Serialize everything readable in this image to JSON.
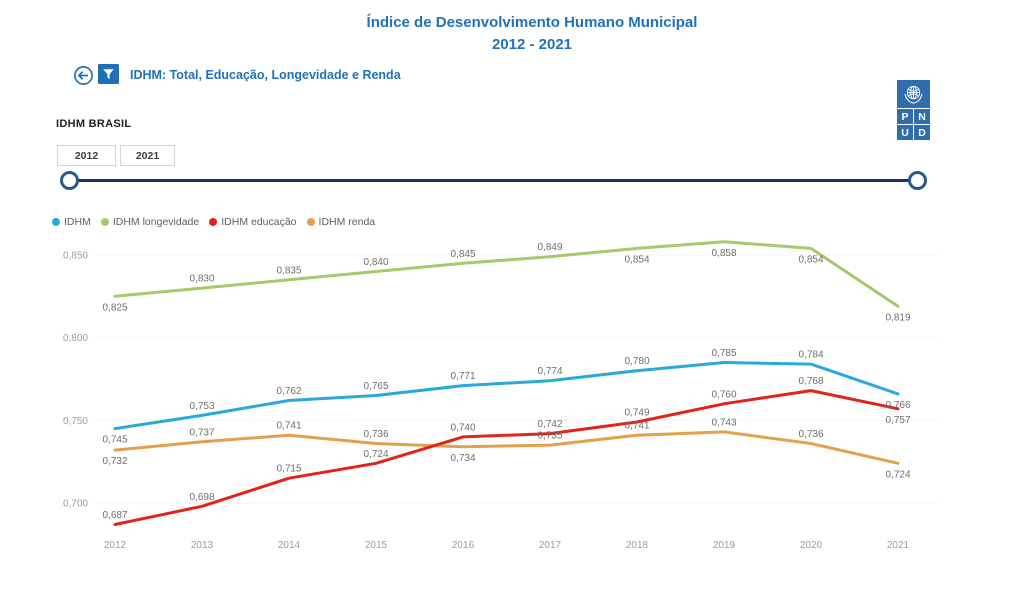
{
  "title": {
    "line1": "Índice de Desenvolvimento Humano Municipal",
    "line2": "2012 - 2021"
  },
  "toolbar": {
    "back_icon": "back-arrow-circle",
    "filter_icon": "funnel",
    "filter_label": "IDHM: Total, Educação, Longevidade e Renda"
  },
  "logo": {
    "name": "PNUD",
    "emblem": "un-globe-emblem",
    "letters": [
      "P",
      "N",
      "U",
      "D"
    ]
  },
  "panel": {
    "heading": "IDHM BRASIL",
    "year_from": "2012",
    "year_to": "2021"
  },
  "colors": {
    "accent_blue": "#1F72B8",
    "slider_navy": "#17375E",
    "logo_blue": "#2F6DAE",
    "idhm": "#29A8DC",
    "longevidade": "#A6C96A",
    "educacao": "#E2231A",
    "renda": "#E3A14E"
  },
  "legend": [
    {
      "label": "IDHM",
      "color": "#29A8DC"
    },
    {
      "label": "IDHM longevidade",
      "color": "#A6C96A"
    },
    {
      "label": "IDHM educação",
      "color": "#E2231A"
    },
    {
      "label": "IDHM renda",
      "color": "#E3A14E"
    }
  ],
  "chart_data": {
    "type": "line",
    "title": "Índice de Desenvolvimento Humano Municipal 2012 - 2021",
    "xlabel": "",
    "ylabel": "",
    "x": [
      "2012",
      "2013",
      "2014",
      "2015",
      "2016",
      "2017",
      "2018",
      "2019",
      "2020",
      "2021"
    ],
    "yticks": [
      0.85,
      0.8,
      0.75,
      0.7
    ],
    "ytick_labels": [
      "0,850",
      "0,800",
      "0,750",
      "0,700"
    ],
    "ylim": [
      0.675,
      0.865
    ],
    "grid": "horizontal-dotted",
    "legend_position": "top-left",
    "series": [
      {
        "name": "IDHM longevidade",
        "color": "#A6C96A",
        "values": [
          0.825,
          0.83,
          0.835,
          0.84,
          0.845,
          0.849,
          0.854,
          0.858,
          0.854,
          0.819
        ],
        "labels": [
          "0,825",
          "0,830",
          "0,835",
          "0,840",
          "0,845",
          "0,849",
          "0,854",
          "0,858",
          "0,854",
          "0,819"
        ],
        "label_side": [
          "below",
          "above",
          "above",
          "above",
          "above",
          "above",
          "below",
          "below",
          "below",
          "below"
        ]
      },
      {
        "name": "IDHM",
        "color": "#29A8DC",
        "values": [
          0.745,
          0.753,
          0.762,
          0.765,
          0.771,
          0.774,
          0.78,
          0.785,
          0.784,
          0.766
        ],
        "labels": [
          "0,745",
          "0,753",
          "0,762",
          "0,765",
          "0,771",
          "0,774",
          "0,780",
          "0,785",
          "0,784",
          "0,766"
        ],
        "label_side": [
          "below",
          "above",
          "above",
          "above",
          "above",
          "above",
          "above",
          "above",
          "above",
          "below"
        ]
      },
      {
        "name": "IDHM educação",
        "color": "#E2231A",
        "values": [
          0.687,
          0.698,
          0.715,
          0.724,
          0.74,
          0.742,
          0.749,
          0.76,
          0.768,
          0.757
        ],
        "labels": [
          "0,687",
          "0,698",
          "0,715",
          "0,724",
          "0,740",
          "0,742",
          "0,749",
          "0,760",
          "0,768",
          "0,757"
        ],
        "label_side": [
          "above",
          "above",
          "above",
          "above",
          "above",
          "above",
          "above",
          "above",
          "above",
          "below"
        ]
      },
      {
        "name": "IDHM renda",
        "color": "#E3A14E",
        "values": [
          0.732,
          0.737,
          0.741,
          0.736,
          0.734,
          0.735,
          0.741,
          0.743,
          0.736,
          0.724
        ],
        "labels": [
          "0,732",
          "0,737",
          "0,741",
          "0,736",
          "0,734",
          "0,735",
          "0,741",
          "0,743",
          "0,736",
          "0,724"
        ],
        "label_side": [
          "below",
          "above",
          "above",
          "above",
          "below",
          "above",
          "above",
          "above",
          "above",
          "below"
        ]
      }
    ]
  }
}
